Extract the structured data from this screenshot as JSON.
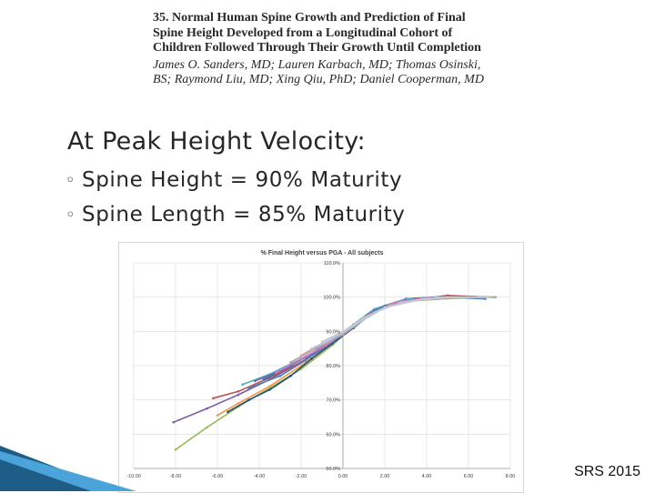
{
  "paper": {
    "title": "35. Normal Human Spine Growth and Prediction of Final\nSpine Height Developed from a Longitudinal Cohort of\nChildren Followed Through Their Growth Until Completion",
    "authors": "James O. Sanders, MD; Lauren Karbach, MD; Thomas Osinski,\nBS; Raymond Liu, MD; Xing Qiu, PhD; Daniel Cooperman, MD"
  },
  "bullets": {
    "main_marker": "",
    "main": "At Peak Height Velocity:",
    "sub_marker": "◦",
    "sub": [
      "Spine Height = 90% Maturity",
      "Spine Length = 85% Maturity"
    ]
  },
  "footer": "SRS 2015",
  "colors": {
    "ribbon_dark": "#1f5d88",
    "ribbon_light": "#4aa3d9"
  },
  "chart_data": {
    "type": "line",
    "title": "% Final Height versus PGA - All subjects",
    "xlabel": "",
    "ylabel": "",
    "xlim": [
      -10,
      8
    ],
    "ylim": [
      50,
      110
    ],
    "x_ticks": [
      "-10.00",
      "-8.00",
      "-6.00",
      "-4.00",
      "-2.00",
      "0.00",
      "2.00",
      "4.00",
      "6.00",
      "8.00"
    ],
    "y_ticks": [
      "50.0%",
      "60.0%",
      "70.0%",
      "80.0%",
      "90.0%",
      "100.0%",
      "110.0%"
    ],
    "grid": true,
    "legend": "none",
    "series": [
      {
        "color": "#7b5ea7",
        "points": [
          [
            -8.1,
            63.5
          ],
          [
            -6.5,
            67.5
          ],
          [
            -5,
            71.5
          ],
          [
            -3.5,
            76
          ],
          [
            -2,
            81
          ],
          [
            -0.5,
            87
          ],
          [
            0.5,
            92
          ],
          [
            1.5,
            96.5
          ],
          [
            3,
            99
          ],
          [
            5,
            99.8
          ],
          [
            7,
            100
          ]
        ]
      },
      {
        "color": "#9bbb59",
        "points": [
          [
            -8.0,
            55.5
          ],
          [
            -6.5,
            62
          ],
          [
            -5,
            68
          ],
          [
            -3.5,
            73.5
          ],
          [
            -2,
            79
          ],
          [
            -0.5,
            86
          ],
          [
            0.5,
            91.5
          ],
          [
            1.5,
            96
          ],
          [
            3,
            98.8
          ],
          [
            5,
            99.6
          ],
          [
            7,
            100
          ]
        ]
      },
      {
        "color": "#c0504d",
        "points": [
          [
            -6.2,
            70.5
          ],
          [
            -5,
            72.5
          ],
          [
            -3.5,
            76.5
          ],
          [
            -2,
            81
          ],
          [
            -0.5,
            86.5
          ],
          [
            0.5,
            91.5
          ],
          [
            1.5,
            96
          ],
          [
            3,
            99
          ],
          [
            5,
            100.5
          ],
          [
            7,
            100
          ]
        ]
      },
      {
        "color": "#f79646",
        "points": [
          [
            -6.0,
            65.5
          ],
          [
            -5,
            69
          ],
          [
            -3.5,
            74
          ],
          [
            -2,
            80
          ],
          [
            -0.5,
            86.5
          ],
          [
            0.5,
            92
          ],
          [
            1.5,
            96.5
          ],
          [
            3,
            99.5
          ],
          [
            5,
            100
          ],
          [
            6.5,
            100
          ]
        ]
      },
      {
        "color": "#1f4e79",
        "points": [
          [
            -5.5,
            66.5
          ],
          [
            -4.5,
            70
          ],
          [
            -3.5,
            73
          ],
          [
            -2.5,
            77
          ],
          [
            -1.5,
            82
          ],
          [
            -0.5,
            86.5
          ],
          [
            0.5,
            91
          ],
          [
            1.5,
            96
          ],
          [
            3,
            99.5
          ],
          [
            5,
            100.2
          ],
          [
            6.5,
            99.8
          ]
        ]
      },
      {
        "color": "#4bacc6",
        "points": [
          [
            -4.8,
            74.5
          ],
          [
            -3.5,
            77.5
          ],
          [
            -2,
            82
          ],
          [
            -0.5,
            87
          ],
          [
            0.5,
            92
          ],
          [
            1.5,
            96.5
          ],
          [
            3,
            99.5
          ],
          [
            5,
            100
          ],
          [
            7.2,
            100
          ]
        ]
      },
      {
        "color": "#8064a2",
        "points": [
          [
            -4.2,
            75.5
          ],
          [
            -3,
            78.5
          ],
          [
            -1.8,
            82.5
          ],
          [
            -0.5,
            87.5
          ],
          [
            0.5,
            92
          ],
          [
            1.5,
            96
          ],
          [
            3,
            99
          ],
          [
            5,
            100.3
          ],
          [
            7,
            100
          ]
        ]
      },
      {
        "color": "#4f81bd",
        "points": [
          [
            -4.5,
            73.5
          ],
          [
            -3,
            77
          ],
          [
            -1.8,
            81.5
          ],
          [
            -0.5,
            87
          ],
          [
            0.5,
            91.5
          ],
          [
            1.5,
            96
          ],
          [
            3,
            99
          ],
          [
            5,
            100
          ],
          [
            6.8,
            99.5
          ]
        ]
      },
      {
        "color": "#2c7fb8",
        "points": [
          [
            -3.8,
            76
          ],
          [
            -2.5,
            80
          ],
          [
            -1.2,
            84.5
          ],
          [
            0,
            89
          ],
          [
            1,
            94
          ],
          [
            2,
            97.5
          ],
          [
            3.5,
            99.5
          ],
          [
            5.5,
            100
          ],
          [
            7,
            100
          ]
        ]
      },
      {
        "color": "#e377c2",
        "points": [
          [
            -3.2,
            78
          ],
          [
            -2,
            82
          ],
          [
            -0.8,
            86
          ],
          [
            0.3,
            90.5
          ],
          [
            1.3,
            95
          ],
          [
            2.5,
            98.5
          ],
          [
            4,
            99.8
          ],
          [
            6,
            100
          ]
        ]
      },
      {
        "color": "#a6a6a6",
        "points": [
          [
            -2.5,
            81
          ],
          [
            -1.3,
            85
          ],
          [
            0,
            89
          ],
          [
            1,
            93.5
          ],
          [
            2,
            97
          ],
          [
            3.5,
            99
          ],
          [
            5.5,
            99.8
          ],
          [
            7.3,
            100
          ]
        ]
      },
      {
        "color": "#d9a6a6",
        "points": [
          [
            -2.0,
            83
          ],
          [
            -1,
            86.5
          ],
          [
            0,
            89.5
          ],
          [
            1,
            94
          ],
          [
            2.2,
            97.5
          ],
          [
            3.8,
            99.5
          ],
          [
            6,
            100
          ]
        ]
      },
      {
        "color": "#b4c7e7",
        "points": [
          [
            -1.5,
            85
          ],
          [
            -0.5,
            88
          ],
          [
            0.5,
            91.5
          ],
          [
            1.5,
            95.5
          ],
          [
            2.8,
            98.5
          ],
          [
            4.5,
            100
          ],
          [
            6.5,
            100
          ]
        ]
      },
      {
        "color": "#c9c9c9",
        "points": [
          [
            -1.0,
            87
          ],
          [
            0,
            90
          ],
          [
            1,
            94
          ],
          [
            2,
            97
          ],
          [
            3.5,
            99
          ],
          [
            5,
            100
          ],
          [
            7,
            100
          ]
        ]
      }
    ]
  }
}
